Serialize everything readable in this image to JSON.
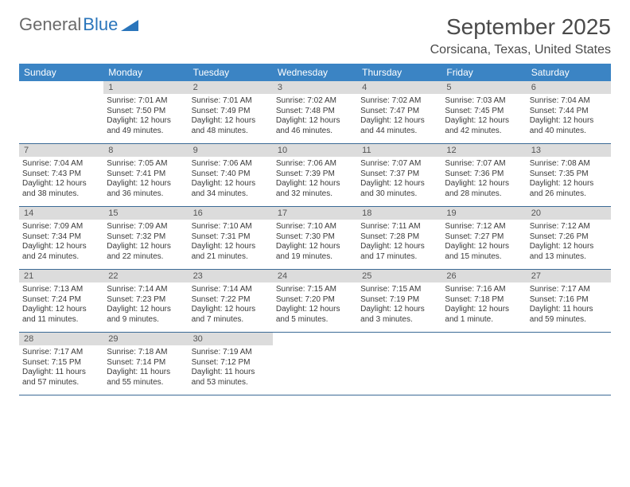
{
  "logo": {
    "text1": "General",
    "text2": "Blue"
  },
  "title": "September 2025",
  "location": "Corsicana, Texas, United States",
  "colors": {
    "header_bg": "#3b84c4",
    "header_text": "#ffffff",
    "daynum_bg": "#dcdcdc",
    "daynum_text": "#555555",
    "body_text": "#3a3a3a",
    "week_border": "#3b6a96",
    "title_text": "#4a4a4a",
    "logo_gray": "#6a6a6a",
    "logo_blue": "#2a75bb"
  },
  "typography": {
    "title_fontsize": 28,
    "location_fontsize": 16,
    "header_fontsize": 12,
    "daynum_fontsize": 11,
    "body_fontsize": 10
  },
  "day_headers": [
    "Sunday",
    "Monday",
    "Tuesday",
    "Wednesday",
    "Thursday",
    "Friday",
    "Saturday"
  ],
  "weeks": [
    [
      {
        "empty": true
      },
      {
        "num": "1",
        "sunrise": "Sunrise: 7:01 AM",
        "sunset": "Sunset: 7:50 PM",
        "day1": "Daylight: 12 hours",
        "day2": "and 49 minutes."
      },
      {
        "num": "2",
        "sunrise": "Sunrise: 7:01 AM",
        "sunset": "Sunset: 7:49 PM",
        "day1": "Daylight: 12 hours",
        "day2": "and 48 minutes."
      },
      {
        "num": "3",
        "sunrise": "Sunrise: 7:02 AM",
        "sunset": "Sunset: 7:48 PM",
        "day1": "Daylight: 12 hours",
        "day2": "and 46 minutes."
      },
      {
        "num": "4",
        "sunrise": "Sunrise: 7:02 AM",
        "sunset": "Sunset: 7:47 PM",
        "day1": "Daylight: 12 hours",
        "day2": "and 44 minutes."
      },
      {
        "num": "5",
        "sunrise": "Sunrise: 7:03 AM",
        "sunset": "Sunset: 7:45 PM",
        "day1": "Daylight: 12 hours",
        "day2": "and 42 minutes."
      },
      {
        "num": "6",
        "sunrise": "Sunrise: 7:04 AM",
        "sunset": "Sunset: 7:44 PM",
        "day1": "Daylight: 12 hours",
        "day2": "and 40 minutes."
      }
    ],
    [
      {
        "num": "7",
        "sunrise": "Sunrise: 7:04 AM",
        "sunset": "Sunset: 7:43 PM",
        "day1": "Daylight: 12 hours",
        "day2": "and 38 minutes."
      },
      {
        "num": "8",
        "sunrise": "Sunrise: 7:05 AM",
        "sunset": "Sunset: 7:41 PM",
        "day1": "Daylight: 12 hours",
        "day2": "and 36 minutes."
      },
      {
        "num": "9",
        "sunrise": "Sunrise: 7:06 AM",
        "sunset": "Sunset: 7:40 PM",
        "day1": "Daylight: 12 hours",
        "day2": "and 34 minutes."
      },
      {
        "num": "10",
        "sunrise": "Sunrise: 7:06 AM",
        "sunset": "Sunset: 7:39 PM",
        "day1": "Daylight: 12 hours",
        "day2": "and 32 minutes."
      },
      {
        "num": "11",
        "sunrise": "Sunrise: 7:07 AM",
        "sunset": "Sunset: 7:37 PM",
        "day1": "Daylight: 12 hours",
        "day2": "and 30 minutes."
      },
      {
        "num": "12",
        "sunrise": "Sunrise: 7:07 AM",
        "sunset": "Sunset: 7:36 PM",
        "day1": "Daylight: 12 hours",
        "day2": "and 28 minutes."
      },
      {
        "num": "13",
        "sunrise": "Sunrise: 7:08 AM",
        "sunset": "Sunset: 7:35 PM",
        "day1": "Daylight: 12 hours",
        "day2": "and 26 minutes."
      }
    ],
    [
      {
        "num": "14",
        "sunrise": "Sunrise: 7:09 AM",
        "sunset": "Sunset: 7:34 PM",
        "day1": "Daylight: 12 hours",
        "day2": "and 24 minutes."
      },
      {
        "num": "15",
        "sunrise": "Sunrise: 7:09 AM",
        "sunset": "Sunset: 7:32 PM",
        "day1": "Daylight: 12 hours",
        "day2": "and 22 minutes."
      },
      {
        "num": "16",
        "sunrise": "Sunrise: 7:10 AM",
        "sunset": "Sunset: 7:31 PM",
        "day1": "Daylight: 12 hours",
        "day2": "and 21 minutes."
      },
      {
        "num": "17",
        "sunrise": "Sunrise: 7:10 AM",
        "sunset": "Sunset: 7:30 PM",
        "day1": "Daylight: 12 hours",
        "day2": "and 19 minutes."
      },
      {
        "num": "18",
        "sunrise": "Sunrise: 7:11 AM",
        "sunset": "Sunset: 7:28 PM",
        "day1": "Daylight: 12 hours",
        "day2": "and 17 minutes."
      },
      {
        "num": "19",
        "sunrise": "Sunrise: 7:12 AM",
        "sunset": "Sunset: 7:27 PM",
        "day1": "Daylight: 12 hours",
        "day2": "and 15 minutes."
      },
      {
        "num": "20",
        "sunrise": "Sunrise: 7:12 AM",
        "sunset": "Sunset: 7:26 PM",
        "day1": "Daylight: 12 hours",
        "day2": "and 13 minutes."
      }
    ],
    [
      {
        "num": "21",
        "sunrise": "Sunrise: 7:13 AM",
        "sunset": "Sunset: 7:24 PM",
        "day1": "Daylight: 12 hours",
        "day2": "and 11 minutes."
      },
      {
        "num": "22",
        "sunrise": "Sunrise: 7:14 AM",
        "sunset": "Sunset: 7:23 PM",
        "day1": "Daylight: 12 hours",
        "day2": "and 9 minutes."
      },
      {
        "num": "23",
        "sunrise": "Sunrise: 7:14 AM",
        "sunset": "Sunset: 7:22 PM",
        "day1": "Daylight: 12 hours",
        "day2": "and 7 minutes."
      },
      {
        "num": "24",
        "sunrise": "Sunrise: 7:15 AM",
        "sunset": "Sunset: 7:20 PM",
        "day1": "Daylight: 12 hours",
        "day2": "and 5 minutes."
      },
      {
        "num": "25",
        "sunrise": "Sunrise: 7:15 AM",
        "sunset": "Sunset: 7:19 PM",
        "day1": "Daylight: 12 hours",
        "day2": "and 3 minutes."
      },
      {
        "num": "26",
        "sunrise": "Sunrise: 7:16 AM",
        "sunset": "Sunset: 7:18 PM",
        "day1": "Daylight: 12 hours",
        "day2": "and 1 minute."
      },
      {
        "num": "27",
        "sunrise": "Sunrise: 7:17 AM",
        "sunset": "Sunset: 7:16 PM",
        "day1": "Daylight: 11 hours",
        "day2": "and 59 minutes."
      }
    ],
    [
      {
        "num": "28",
        "sunrise": "Sunrise: 7:17 AM",
        "sunset": "Sunset: 7:15 PM",
        "day1": "Daylight: 11 hours",
        "day2": "and 57 minutes."
      },
      {
        "num": "29",
        "sunrise": "Sunrise: 7:18 AM",
        "sunset": "Sunset: 7:14 PM",
        "day1": "Daylight: 11 hours",
        "day2": "and 55 minutes."
      },
      {
        "num": "30",
        "sunrise": "Sunrise: 7:19 AM",
        "sunset": "Sunset: 7:12 PM",
        "day1": "Daylight: 11 hours",
        "day2": "and 53 minutes."
      },
      {
        "empty": true
      },
      {
        "empty": true
      },
      {
        "empty": true
      },
      {
        "empty": true
      }
    ]
  ]
}
